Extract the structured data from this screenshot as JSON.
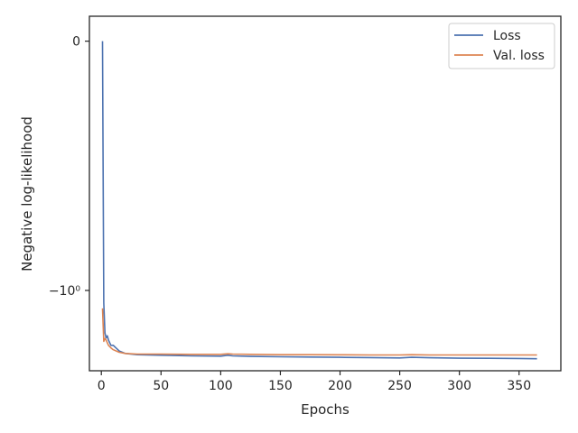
{
  "chart_data": {
    "type": "line",
    "title": "",
    "xlabel": "Epochs",
    "ylabel": "Negative log-likelihood",
    "xlim": [
      -10,
      385
    ],
    "y_scale": "symlog",
    "y_ticks": [
      {
        "value": 0,
        "label": "0"
      },
      {
        "value": -1,
        "label": "−10⁰"
      }
    ],
    "x_ticks": [
      0,
      50,
      100,
      150,
      200,
      250,
      300,
      350
    ],
    "grid": false,
    "legend_position": "top-right",
    "series": [
      {
        "name": "Loss",
        "color": "#4c72b0",
        "x": [
          1,
          2,
          3,
          4,
          5,
          6,
          8,
          10,
          15,
          20,
          30,
          50,
          75,
          100,
          106,
          110,
          125,
          150,
          175,
          200,
          225,
          250,
          260,
          275,
          300,
          325,
          350,
          365
        ],
        "y": [
          0,
          -1.12,
          -1.48,
          -1.55,
          -1.52,
          -1.58,
          -1.66,
          -1.66,
          -1.75,
          -1.79,
          -1.81,
          -1.82,
          -1.83,
          -1.835,
          -1.82,
          -1.83,
          -1.84,
          -1.845,
          -1.85,
          -1.855,
          -1.86,
          -1.865,
          -1.855,
          -1.862,
          -1.87,
          -1.872,
          -1.875,
          -1.88
        ]
      },
      {
        "name": "Val. loss",
        "color": "#dd8452",
        "x": [
          1,
          2,
          3,
          4,
          5,
          6,
          8,
          10,
          15,
          20,
          30,
          50,
          75,
          100,
          106,
          110,
          125,
          150,
          175,
          200,
          225,
          250,
          260,
          275,
          300,
          325,
          350,
          365
        ],
        "y": [
          -1.18,
          -1.6,
          -1.56,
          -1.58,
          -1.62,
          -1.66,
          -1.7,
          -1.73,
          -1.77,
          -1.79,
          -1.8,
          -1.8,
          -1.805,
          -1.805,
          -1.795,
          -1.8,
          -1.805,
          -1.81,
          -1.81,
          -1.812,
          -1.815,
          -1.815,
          -1.81,
          -1.815,
          -1.815,
          -1.815,
          -1.815,
          -1.815
        ]
      }
    ]
  }
}
